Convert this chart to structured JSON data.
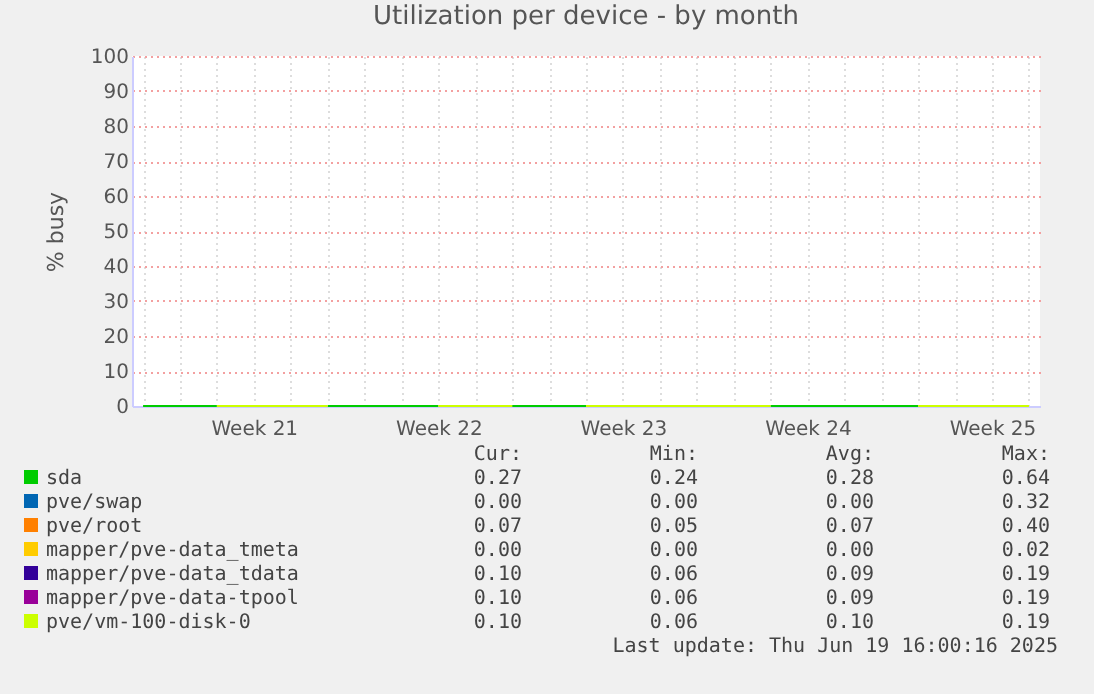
{
  "chart_data": {
    "type": "line",
    "title": "Utilization per device - by month",
    "ylabel": "% busy",
    "categories": [
      null,
      null,
      null,
      "Week 21",
      null,
      null,
      null,
      null,
      "Week 22",
      null,
      null,
      null,
      null,
      "Week 23",
      null,
      null,
      null,
      null,
      "Week 24",
      null,
      null,
      null,
      null,
      "Week 25",
      null
    ],
    "ylim": [
      0,
      100
    ],
    "yticks": [
      0,
      10,
      20,
      30,
      40,
      50,
      60,
      70,
      80,
      90,
      100
    ],
    "grid": true,
    "legend": "bottom",
    "series": [
      {
        "name": "sda",
        "color": "#00cc00",
        "values": [
          0,
          0,
          0,
          null,
          null,
          0,
          0,
          0,
          0,
          null,
          0,
          0,
          0,
          null,
          null,
          null,
          null,
          0,
          0,
          0,
          0,
          0,
          null,
          null,
          null
        ]
      },
      {
        "name": "pve/swap",
        "color": "#0066b3",
        "values": [
          null,
          null,
          null,
          null,
          null,
          null,
          null,
          null,
          null,
          null,
          null,
          null,
          null,
          null,
          null,
          null,
          null,
          null,
          null,
          null,
          null,
          null,
          null,
          null,
          null
        ]
      },
      {
        "name": "pve/root",
        "color": "#ff8000",
        "values": [
          null,
          null,
          null,
          null,
          null,
          null,
          null,
          null,
          null,
          null,
          null,
          null,
          null,
          null,
          null,
          null,
          null,
          null,
          null,
          null,
          null,
          null,
          null,
          null,
          null
        ]
      },
      {
        "name": "mapper/pve-data_tmeta",
        "color": "#ffcc00",
        "values": [
          null,
          null,
          null,
          null,
          null,
          null,
          null,
          null,
          null,
          null,
          null,
          null,
          null,
          null,
          null,
          null,
          null,
          null,
          null,
          null,
          null,
          null,
          null,
          null,
          null
        ]
      },
      {
        "name": "mapper/pve-data_tdata",
        "color": "#330099",
        "values": [
          null,
          null,
          null,
          null,
          null,
          null,
          null,
          null,
          null,
          null,
          null,
          null,
          null,
          null,
          null,
          null,
          null,
          null,
          null,
          null,
          null,
          null,
          null,
          null,
          null
        ]
      },
      {
        "name": "mapper/pve-data-tpool",
        "color": "#990099",
        "values": [
          null,
          null,
          null,
          null,
          null,
          null,
          null,
          null,
          null,
          null,
          null,
          null,
          null,
          null,
          null,
          null,
          null,
          null,
          null,
          null,
          null,
          null,
          null,
          null,
          null
        ]
      },
      {
        "name": "pve/vm-100-disk-0",
        "color": "#ccff00",
        "values": [
          null,
          null,
          0,
          0,
          0,
          0,
          null,
          null,
          0,
          0,
          0,
          null,
          0,
          0,
          0,
          0,
          0,
          0,
          null,
          null,
          null,
          0,
          0,
          0,
          0
        ]
      }
    ],
    "annotations": [
      "Cur:",
      "Min:",
      "Avg:",
      "Max:",
      "0.27",
      "0.24",
      "0.28",
      "0.64",
      "0.00",
      "0.00",
      "0.00",
      "0.32",
      "0.07",
      "0.05",
      "0.07",
      "0.40",
      "0.00",
      "0.00",
      "0.00",
      "0.02",
      "0.10",
      "0.06",
      "0.09",
      "0.19",
      "0.10",
      "0.06",
      "0.09",
      "0.19",
      "0.10",
      "0.06",
      "0.10",
      "0.19",
      "Last update: Thu Jun 19 16:00:16 2025"
    ]
  }
}
